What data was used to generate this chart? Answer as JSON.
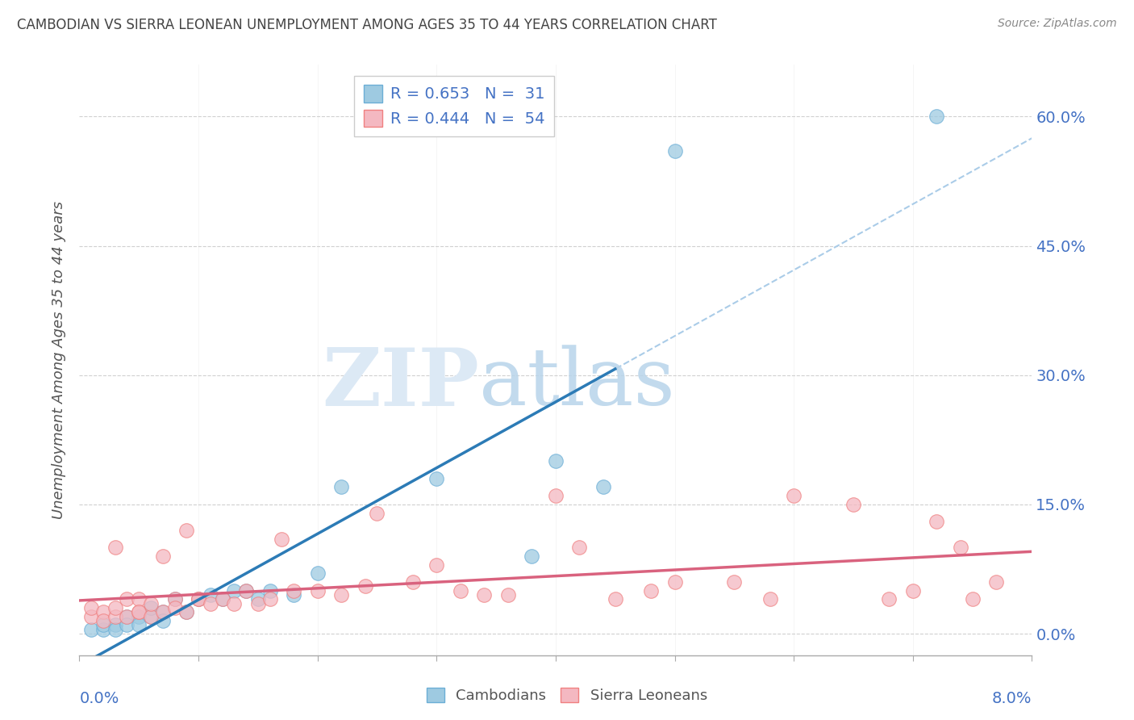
{
  "title": "CAMBODIAN VS SIERRA LEONEAN UNEMPLOYMENT AMONG AGES 35 TO 44 YEARS CORRELATION CHART",
  "source": "Source: ZipAtlas.com",
  "ylabel": "Unemployment Among Ages 35 to 44 years",
  "yticks": [
    0.0,
    0.15,
    0.3,
    0.45,
    0.6
  ],
  "ytick_labels": [
    "0.0%",
    "15.0%",
    "30.0%",
    "45.0%",
    "60.0%"
  ],
  "xlim": [
    0.0,
    0.08
  ],
  "ylim": [
    -0.02,
    0.66
  ],
  "plot_ylim": [
    0.0,
    0.66
  ],
  "cambodian_R": 0.653,
  "cambodian_N": 31,
  "sierraleone_R": 0.444,
  "sierraleone_N": 54,
  "cambodian_color": "#9ecae1",
  "sierraleone_color": "#f4b8c1",
  "cambodian_edge_color": "#6baed6",
  "sierraleone_edge_color": "#f08080",
  "cambodian_trend_color": "#2c7bb6",
  "sierraleone_trend_color": "#d9627e",
  "dashed_line_color": "#aacce8",
  "background_color": "#ffffff",
  "grid_color": "#d0d0d0",
  "legend_label_cambodian": "Cambodians",
  "legend_label_sierraleone": "Sierra Leoneans",
  "cambodian_x": [
    0.001,
    0.002,
    0.002,
    0.003,
    0.003,
    0.004,
    0.004,
    0.005,
    0.005,
    0.006,
    0.006,
    0.007,
    0.007,
    0.008,
    0.009,
    0.01,
    0.011,
    0.012,
    0.013,
    0.014,
    0.015,
    0.016,
    0.018,
    0.02,
    0.022,
    0.03,
    0.04,
    0.044,
    0.05,
    0.038,
    0.072
  ],
  "cambodian_y": [
    0.005,
    0.005,
    0.01,
    0.01,
    0.005,
    0.02,
    0.01,
    0.02,
    0.01,
    0.02,
    0.03,
    0.025,
    0.015,
    0.04,
    0.025,
    0.04,
    0.045,
    0.04,
    0.05,
    0.05,
    0.04,
    0.05,
    0.045,
    0.07,
    0.17,
    0.18,
    0.2,
    0.17,
    0.56,
    0.09,
    0.6
  ],
  "sierraleone_x": [
    0.001,
    0.001,
    0.002,
    0.002,
    0.003,
    0.003,
    0.003,
    0.004,
    0.004,
    0.005,
    0.005,
    0.005,
    0.006,
    0.006,
    0.007,
    0.007,
    0.008,
    0.008,
    0.009,
    0.009,
    0.01,
    0.01,
    0.011,
    0.012,
    0.013,
    0.014,
    0.015,
    0.016,
    0.017,
    0.018,
    0.02,
    0.022,
    0.024,
    0.025,
    0.028,
    0.03,
    0.032,
    0.034,
    0.036,
    0.04,
    0.042,
    0.045,
    0.048,
    0.05,
    0.055,
    0.058,
    0.06,
    0.065,
    0.068,
    0.07,
    0.072,
    0.074,
    0.075,
    0.077
  ],
  "sierraleone_y": [
    0.02,
    0.03,
    0.025,
    0.015,
    0.02,
    0.03,
    0.1,
    0.02,
    0.04,
    0.025,
    0.04,
    0.025,
    0.02,
    0.035,
    0.025,
    0.09,
    0.04,
    0.03,
    0.025,
    0.12,
    0.04,
    0.04,
    0.035,
    0.04,
    0.035,
    0.05,
    0.035,
    0.04,
    0.11,
    0.05,
    0.05,
    0.045,
    0.055,
    0.14,
    0.06,
    0.08,
    0.05,
    0.045,
    0.045,
    0.16,
    0.1,
    0.04,
    0.05,
    0.06,
    0.06,
    0.04,
    0.16,
    0.15,
    0.04,
    0.05,
    0.13,
    0.1,
    0.04,
    0.06
  ]
}
